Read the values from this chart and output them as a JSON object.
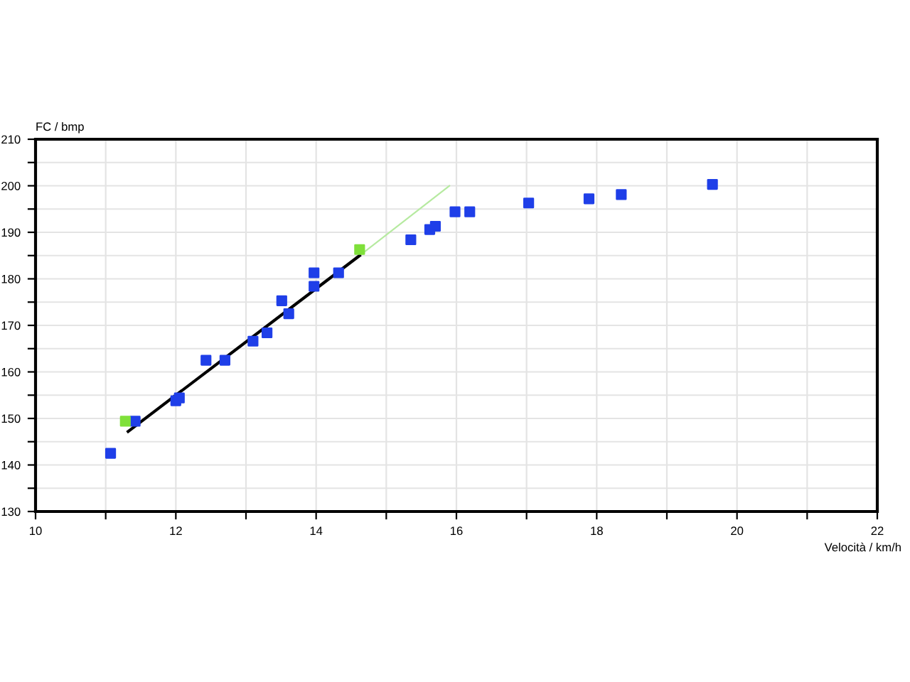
{
  "chart_data": {
    "type": "scatter",
    "xlabel": "Velocità / km/h",
    "ylabel": "FC / bmp",
    "xlim": [
      10,
      22
    ],
    "ylim": [
      130,
      210
    ],
    "xticks": [
      10,
      {
        "value": 11,
        "label": null
      },
      12,
      {
        "value": 13,
        "label": null
      },
      14,
      {
        "value": 15,
        "label": null
      },
      16,
      {
        "value": 17,
        "label": null
      },
      18,
      {
        "value": 19,
        "label": null
      },
      20,
      {
        "value": 21,
        "label": null
      },
      22
    ],
    "yticks": [
      130,
      {
        "value": 135,
        "label": null
      },
      140,
      {
        "value": 145,
        "label": null
      },
      150,
      {
        "value": 155,
        "label": null
      },
      160,
      {
        "value": 165,
        "label": null
      },
      170,
      {
        "value": 175,
        "label": null
      },
      180,
      {
        "value": 185,
        "label": null
      },
      190,
      {
        "value": 195,
        "label": null
      },
      200,
      {
        "value": 205,
        "label": null
      },
      210
    ],
    "grid": true,
    "marker": "square",
    "series": [
      {
        "type": "line",
        "marker": "none",
        "color": "#b6eaa0",
        "x": [
          14.62,
          15.9
        ],
        "values": [
          185,
          200
        ]
      },
      {
        "type": "line",
        "marker": "none",
        "color": "#000000",
        "x": [
          11.32,
          14.62
        ],
        "values": [
          147.2,
          185
        ]
      },
      {
        "color": "#1f3fe8",
        "x": [
          11.07,
          11.42,
          12.0,
          12.05,
          12.43,
          12.7,
          13.1,
          13.3,
          13.51,
          13.61,
          13.97,
          13.97,
          14.32,
          15.35,
          15.62,
          15.7,
          15.98,
          16.19,
          17.03,
          17.89,
          18.35,
          19.65
        ],
        "values": [
          142.5,
          149.4,
          153.8,
          154.4,
          162.5,
          162.5,
          166.6,
          168.4,
          175.3,
          172.5,
          178.4,
          181.3,
          181.3,
          188.4,
          190.6,
          191.3,
          194.4,
          194.4,
          196.3,
          197.2,
          198.1,
          200.3
        ]
      },
      {
        "color": "#7fe03a",
        "x": [
          11.28,
          14.62
        ],
        "values": [
          149.4,
          186.3
        ]
      }
    ]
  }
}
